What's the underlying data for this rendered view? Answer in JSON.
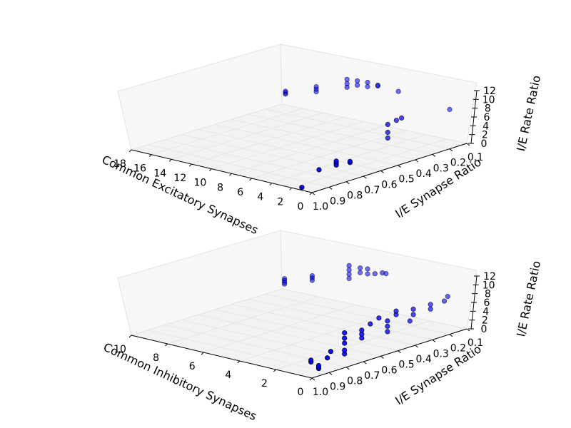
{
  "chart_data": [
    {
      "type": "scatter",
      "projection": "3d",
      "xlabel": "Common Excitatory Synapses",
      "ylabel": "I/E Synapse Ratio",
      "zlabel": "I/E Rate Ratio",
      "x_ticks": [
        "0",
        "2",
        "4",
        "6",
        "8",
        "10",
        "12",
        "14",
        "16",
        "18"
      ],
      "y_ticks": [
        "1.0",
        "0.9",
        "0.8",
        "0.7",
        "0.6",
        "0.5",
        "0.4",
        "0.3",
        "0.2",
        "0.1"
      ],
      "z_ticks": [
        "0",
        "2",
        "4",
        "6",
        "8",
        "10",
        "12"
      ],
      "xlim": [
        0,
        18
      ],
      "ylim": [
        1.0,
        0.1
      ],
      "zlim": [
        0,
        12
      ],
      "marker_color": "#0000ff",
      "points": [
        {
          "x": 17,
          "y": 0.14,
          "z": 4.0
        },
        {
          "x": 17,
          "y": 0.14,
          "z": 4.4
        },
        {
          "x": 17,
          "y": 0.14,
          "z": 4.8
        },
        {
          "x": 14,
          "y": 0.14,
          "z": 6.5
        },
        {
          "x": 14,
          "y": 0.14,
          "z": 7.2
        },
        {
          "x": 14,
          "y": 0.14,
          "z": 7.9
        },
        {
          "x": 11,
          "y": 0.14,
          "z": 9.6
        },
        {
          "x": 11,
          "y": 0.14,
          "z": 10.6
        },
        {
          "x": 11,
          "y": 0.14,
          "z": 11.8
        },
        {
          "x": 10,
          "y": 0.14,
          "z": 10.8
        },
        {
          "x": 10,
          "y": 0.14,
          "z": 12.0
        },
        {
          "x": 9,
          "y": 0.14,
          "z": 11.0
        },
        {
          "x": 9,
          "y": 0.14,
          "z": 12.2
        },
        {
          "x": 8,
          "y": 0.14,
          "z": 11.8
        },
        {
          "x": 8,
          "y": 0.14,
          "z": 12.0
        },
        {
          "x": 6,
          "y": 0.14,
          "z": 11.5
        },
        {
          "x": 1,
          "y": 0.5,
          "z": 7.0
        },
        {
          "x": 1,
          "y": 0.5,
          "z": 8.6
        },
        {
          "x": 1,
          "y": 0.5,
          "z": 10.8
        },
        {
          "x": 1,
          "y": 0.45,
          "z": 11.2
        },
        {
          "x": 1,
          "y": 0.42,
          "z": 11.4
        },
        {
          "x": 1,
          "y": 0.14,
          "z": 9.5
        },
        {
          "x": 1,
          "y": 0.8,
          "z": 4.0
        },
        {
          "x": 1,
          "y": 0.8,
          "z": 4.6
        },
        {
          "x": 1,
          "y": 0.8,
          "z": 5.1
        },
        {
          "x": 1,
          "y": 0.72,
          "z": 3.5
        },
        {
          "x": 1,
          "y": 0.72,
          "z": 3.8
        },
        {
          "x": 1,
          "y": 0.9,
          "z": 4.2
        },
        {
          "x": 1,
          "y": 1.0,
          "z": 0.8
        }
      ]
    },
    {
      "type": "scatter",
      "projection": "3d",
      "xlabel": "Common Inhibitory Synapses",
      "ylabel": "I/E Synapse Ratio",
      "zlabel": "I/E Rate Ratio",
      "x_ticks": [
        "0",
        "2",
        "4",
        "6",
        "8",
        "10"
      ],
      "y_ticks": [
        "1.0",
        "0.9",
        "0.8",
        "0.7",
        "0.6",
        "0.5",
        "0.4",
        "0.3",
        "0.2",
        "0.1"
      ],
      "z_ticks": [
        "0",
        "2",
        "4",
        "6",
        "8",
        "10",
        "12"
      ],
      "xlim": [
        0,
        10
      ],
      "ylim": [
        1.0,
        0.1
      ],
      "zlim": [
        0,
        12
      ],
      "marker_color": "#0000ff",
      "points": [
        {
          "x": 9.5,
          "y": 0.14,
          "z": 2.5
        },
        {
          "x": 9.5,
          "y": 0.14,
          "z": 3.0
        },
        {
          "x": 9.5,
          "y": 0.14,
          "z": 3.5
        },
        {
          "x": 9.5,
          "y": 0.14,
          "z": 4.0
        },
        {
          "x": 8,
          "y": 0.14,
          "z": 5.2
        },
        {
          "x": 8,
          "y": 0.14,
          "z": 5.9
        },
        {
          "x": 8,
          "y": 0.14,
          "z": 6.5
        },
        {
          "x": 6,
          "y": 0.14,
          "z": 8.0
        },
        {
          "x": 6,
          "y": 0.14,
          "z": 9.2
        },
        {
          "x": 6,
          "y": 0.14,
          "z": 10.4
        },
        {
          "x": 6,
          "y": 0.14,
          "z": 11.6
        },
        {
          "x": 5.4,
          "y": 0.14,
          "z": 10.3
        },
        {
          "x": 5.4,
          "y": 0.14,
          "z": 11.6
        },
        {
          "x": 5,
          "y": 0.14,
          "z": 10.4
        },
        {
          "x": 5,
          "y": 0.14,
          "z": 11.8
        },
        {
          "x": 4.6,
          "y": 0.14,
          "z": 10.9
        },
        {
          "x": 4.2,
          "y": 0.14,
          "z": 11.6
        },
        {
          "x": 4,
          "y": 0.14,
          "z": 11.6
        },
        {
          "x": 1,
          "y": 0.9,
          "z": 1.8
        },
        {
          "x": 1,
          "y": 0.9,
          "z": 2.3
        },
        {
          "x": 0.1,
          "y": 0.95,
          "z": 1.8
        },
        {
          "x": 0.1,
          "y": 0.95,
          "z": 2.2
        },
        {
          "x": 0.1,
          "y": 0.95,
          "z": 2.6
        },
        {
          "x": 0.1,
          "y": 0.9,
          "z": 4.0
        },
        {
          "x": 0.1,
          "y": 0.88,
          "z": 5.5
        },
        {
          "x": 0.1,
          "y": 0.8,
          "z": 3.6
        },
        {
          "x": 0.1,
          "y": 0.8,
          "z": 4.6
        },
        {
          "x": 0.1,
          "y": 0.8,
          "z": 6.6
        },
        {
          "x": 0.1,
          "y": 0.8,
          "z": 8.0
        },
        {
          "x": 0.1,
          "y": 0.8,
          "z": 9.5
        },
        {
          "x": 0.1,
          "y": 0.7,
          "z": 6.5
        },
        {
          "x": 0.1,
          "y": 0.7,
          "z": 7.6
        },
        {
          "x": 0.1,
          "y": 0.7,
          "z": 8.7
        },
        {
          "x": 0.1,
          "y": 0.65,
          "z": 9.7
        },
        {
          "x": 0.1,
          "y": 0.6,
          "z": 10.6
        },
        {
          "x": 0.1,
          "y": 0.55,
          "z": 6.0
        },
        {
          "x": 0.1,
          "y": 0.55,
          "z": 7.5
        },
        {
          "x": 0.1,
          "y": 0.55,
          "z": 9.0
        },
        {
          "x": 0.1,
          "y": 0.5,
          "z": 10.0
        },
        {
          "x": 0.1,
          "y": 0.5,
          "z": 11.0
        },
        {
          "x": 0.1,
          "y": 0.42,
          "z": 7.0
        },
        {
          "x": 0.1,
          "y": 0.4,
          "z": 8.5
        },
        {
          "x": 0.1,
          "y": 0.4,
          "z": 10.0
        },
        {
          "x": 0.1,
          "y": 0.3,
          "z": 8.5
        },
        {
          "x": 0.1,
          "y": 0.3,
          "z": 9.8
        },
        {
          "x": 0.1,
          "y": 0.22,
          "z": 9.5
        },
        {
          "x": 0.1,
          "y": 0.2,
          "z": 10.5
        }
      ]
    }
  ]
}
